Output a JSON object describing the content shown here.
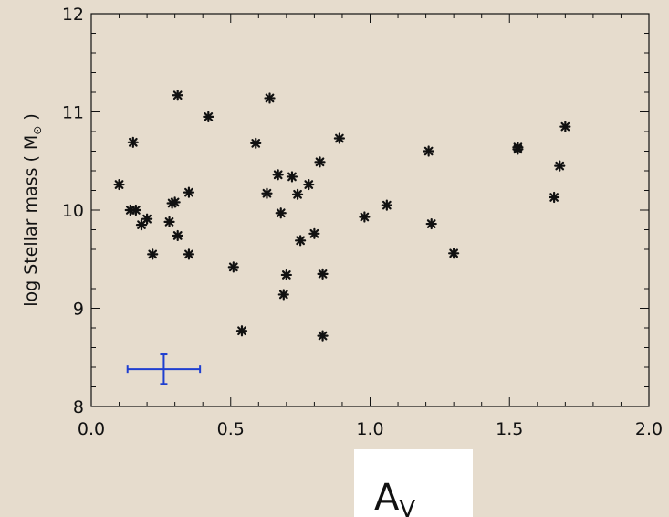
{
  "chart_data": {
    "type": "scatter",
    "title": "",
    "xlabel": "A",
    "xlabel_sub": "V",
    "ylabel": "log Stellar mass ( M",
    "ylabel_sub": "⊙",
    "ylabel_close": " )",
    "xlim": [
      0.0,
      2.0
    ],
    "ylim": [
      8,
      12
    ],
    "x_ticks": [
      "0.0",
      "0.5",
      "1.0",
      "1.5",
      "2.0"
    ],
    "y_ticks": [
      "8",
      "9",
      "10",
      "11",
      "12"
    ],
    "marker": "asterisk",
    "marker_color": "#111111",
    "points": [
      {
        "x": 0.1,
        "y": 10.26
      },
      {
        "x": 0.14,
        "y": 10.0
      },
      {
        "x": 0.15,
        "y": 10.69
      },
      {
        "x": 0.16,
        "y": 10.0
      },
      {
        "x": 0.18,
        "y": 9.85
      },
      {
        "x": 0.2,
        "y": 9.91
      },
      {
        "x": 0.22,
        "y": 9.55
      },
      {
        "x": 0.28,
        "y": 9.88
      },
      {
        "x": 0.29,
        "y": 10.07
      },
      {
        "x": 0.3,
        "y": 10.08
      },
      {
        "x": 0.31,
        "y": 11.17
      },
      {
        "x": 0.31,
        "y": 9.74
      },
      {
        "x": 0.35,
        "y": 10.18
      },
      {
        "x": 0.35,
        "y": 9.55
      },
      {
        "x": 0.42,
        "y": 10.95
      },
      {
        "x": 0.51,
        "y": 9.42
      },
      {
        "x": 0.54,
        "y": 8.77
      },
      {
        "x": 0.59,
        "y": 10.68
      },
      {
        "x": 0.63,
        "y": 10.17
      },
      {
        "x": 0.64,
        "y": 11.14
      },
      {
        "x": 0.67,
        "y": 10.36
      },
      {
        "x": 0.68,
        "y": 9.97
      },
      {
        "x": 0.69,
        "y": 9.14
      },
      {
        "x": 0.7,
        "y": 9.34
      },
      {
        "x": 0.72,
        "y": 10.34
      },
      {
        "x": 0.74,
        "y": 10.16
      },
      {
        "x": 0.75,
        "y": 9.69
      },
      {
        "x": 0.78,
        "y": 10.26
      },
      {
        "x": 0.8,
        "y": 9.76
      },
      {
        "x": 0.82,
        "y": 10.49
      },
      {
        "x": 0.83,
        "y": 8.72
      },
      {
        "x": 0.83,
        "y": 9.35
      },
      {
        "x": 0.89,
        "y": 10.73
      },
      {
        "x": 0.98,
        "y": 9.93
      },
      {
        "x": 1.06,
        "y": 10.05
      },
      {
        "x": 1.21,
        "y": 10.6
      },
      {
        "x": 1.22,
        "y": 9.86
      },
      {
        "x": 1.3,
        "y": 9.56
      },
      {
        "x": 1.53,
        "y": 10.64
      },
      {
        "x": 1.53,
        "y": 10.62
      },
      {
        "x": 1.66,
        "y": 10.13
      },
      {
        "x": 1.68,
        "y": 10.45
      },
      {
        "x": 1.7,
        "y": 10.85
      }
    ],
    "error_bar": {
      "x": 0.26,
      "y": 8.38,
      "x_err": 0.13,
      "y_err": 0.15,
      "color": "#1f3fd0"
    },
    "grid": false,
    "legend": "none"
  }
}
